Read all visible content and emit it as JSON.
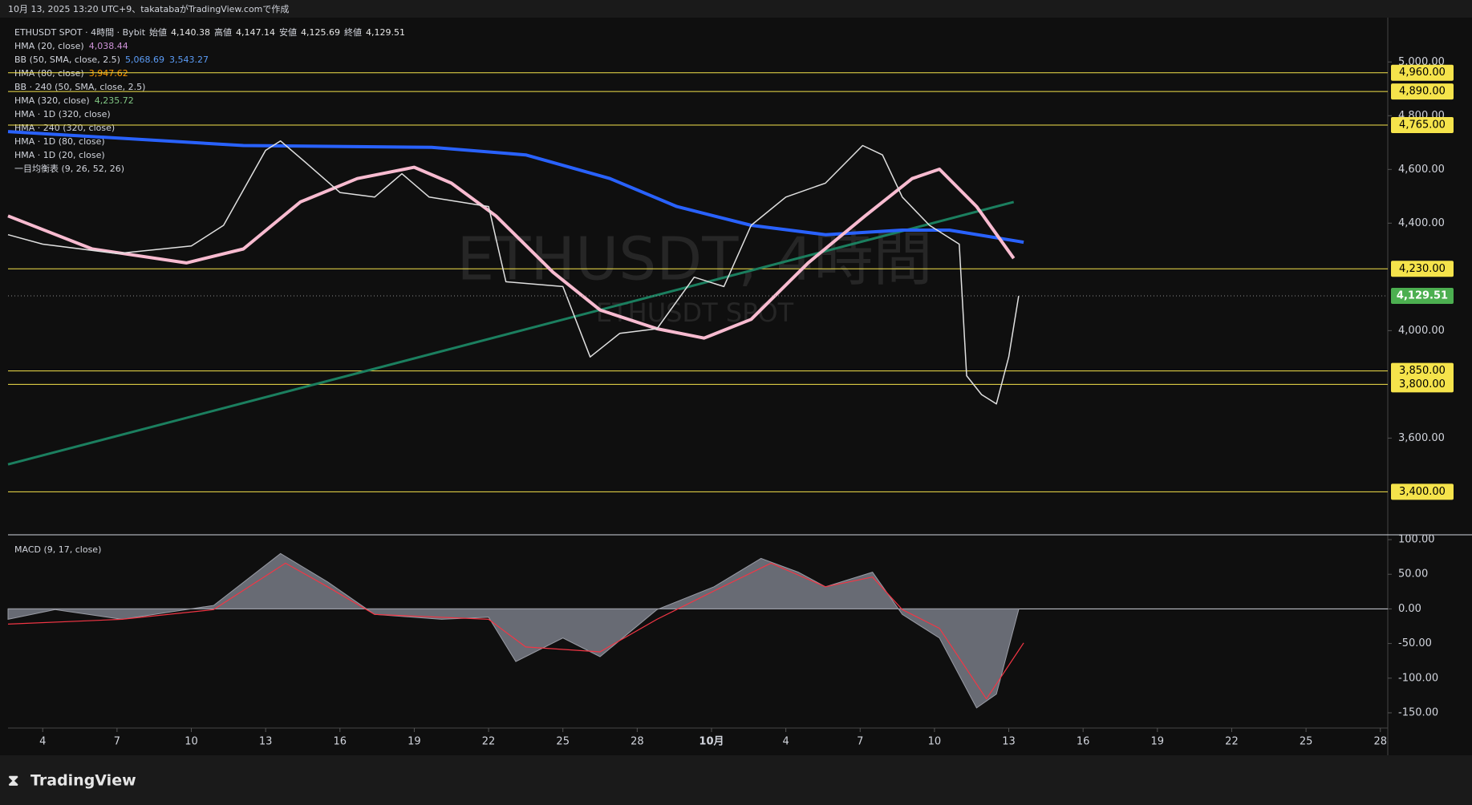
{
  "header": {
    "caption": "10月 13, 2025 13:20 UTC+9、takatabaがTradingView.comで作成"
  },
  "footer": {
    "brand": "TradingView"
  },
  "chart_data": [
    {
      "type": "line",
      "title": "ETHUSDT SPOT · 4時間 · Bybit",
      "ohlc": [
        {
          "name": "始値",
          "value": {
            "value": 4140.38,
            "label": "4,140.38"
          }
        },
        {
          "name": "高値",
          "value": {
            "value": 4147.14,
            "label": "4,147.14"
          }
        },
        {
          "name": "安値",
          "value": {
            "value": 4125.69,
            "label": "4,125.69"
          }
        },
        {
          "name": "終値",
          "value": {
            "value": 4129.51,
            "label": "4,129.51"
          }
        }
      ],
      "watermark": [
        "ETHUSDT, 4時間",
        "ETHUSDT SPOT"
      ],
      "legend": [
        {
          "name": "HMA (20, close)",
          "color": "#ce93d8",
          "values": [
            {
              "value": 4038.44,
              "label": "4,038.44"
            }
          ]
        },
        {
          "name": "BB (50, SMA, close, 2.5)",
          "color": "#5b9cf6",
          "values": [
            {
              "value": 5068.69,
              "label": "5,068.69"
            },
            {
              "value": 3543.27,
              "label": "3,543.27"
            }
          ]
        },
        {
          "name": "HMA (80, close)",
          "color": "#ff9800",
          "values": [
            {
              "value": 3947.62,
              "label": "3,947.62"
            }
          ]
        },
        {
          "name": "BB · 240 (50, SMA, close, 2.5)",
          "color": "#5b9cf6",
          "values": []
        },
        {
          "name": "HMA (320, close)",
          "color": "#81c784",
          "values": [
            {
              "value": 4235.72,
              "label": "4,235.72"
            }
          ]
        },
        {
          "name": "HMA · 1D (320, close)",
          "color": "#81c784",
          "values": []
        },
        {
          "name": "HMA · 240 (320, close)",
          "color": "#81c784",
          "values": []
        },
        {
          "name": "HMA · 1D (80, close)",
          "color": "#81c784",
          "values": []
        },
        {
          "name": "HMA · 1D (20, close)",
          "color": "#81c784",
          "values": []
        },
        {
          "name": "一目均衡表 (9, 26, 52, 26)",
          "color": "#81c784",
          "values": []
        }
      ],
      "xlim": [
        2.6,
        58.3
      ],
      "xticks": [
        4,
        7,
        10,
        13,
        16,
        19,
        22,
        25,
        28,
        {
          "value": 31,
          "label": "10月"
        },
        {
          "value": 34,
          "label": "4"
        },
        {
          "value": 37,
          "label": "7"
        },
        {
          "value": 40,
          "label": "10"
        },
        {
          "value": 43,
          "label": "13"
        },
        {
          "value": 46,
          "label": "16"
        },
        {
          "value": 49,
          "label": "19"
        },
        {
          "value": 52,
          "label": "22"
        },
        {
          "value": 55,
          "label": "25"
        },
        {
          "value": 58,
          "label": "28"
        }
      ],
      "ylim": [
        3240,
        5165
      ],
      "yticks": [
        {
          "value": 5000,
          "label": "5,000.00"
        },
        {
          "value": 4800,
          "label": "4,800.00"
        },
        {
          "value": 4600,
          "label": "4,600.00"
        },
        {
          "value": 4400,
          "label": "4,400.00"
        },
        {
          "value": 4000,
          "label": "4,000.00"
        },
        {
          "value": 3600,
          "label": "3,600.00"
        }
      ],
      "levels": {
        "color": "#f5e34b",
        "values": [
          {
            "value": 4960,
            "label": "4,960.00"
          },
          {
            "value": 4890,
            "label": "4,890.00"
          },
          {
            "value": 4765,
            "label": "4,765.00"
          },
          {
            "value": 4230,
            "label": "4,230.00"
          },
          {
            "value": 3850,
            "label": "3,850.00"
          },
          {
            "value": 3800,
            "label": "3,800.00"
          },
          {
            "value": 3400,
            "label": "3,400.00"
          }
        ]
      },
      "last_price": {
        "value": 4129.51,
        "label": "4,129.51",
        "color": "#4caf50"
      },
      "series": [
        {
          "color": "#1b7f5f",
          "width": 3,
          "x": [
            2.6,
            43.2
          ],
          "values": [
            3502,
            4479
          ]
        },
        {
          "color": "#2962ff",
          "width": 4,
          "x": [
            2.6,
            12.1,
            19.7,
            23.5,
            26.9,
            29.6,
            32.6,
            35.6,
            38.7,
            40.6,
            43.6
          ],
          "values": [
            4741,
            4689,
            4682,
            4654,
            4566,
            4462,
            4392,
            4357,
            4374,
            4374,
            4329
          ]
        },
        {
          "color": "#f8bbd0",
          "width": 4,
          "x": [
            2.6,
            6.0,
            9.8,
            12.1,
            14.4,
            16.7,
            19.0,
            20.5,
            22.3,
            24.6,
            26.5,
            28.8,
            30.7,
            32.6,
            34.9,
            37.2,
            39.1,
            40.2,
            41.7,
            43.2
          ],
          "values": [
            4427,
            4304,
            4252,
            4304,
            4479,
            4566,
            4608,
            4549,
            4427,
            4217,
            4077,
            4007,
            3972,
            4042,
            4252,
            4427,
            4566,
            4601,
            4462,
            4269
          ]
        },
        {
          "color": "#e0e0e0",
          "width": 1.5,
          "x": [
            2.6,
            4.0,
            7.0,
            10.0,
            11.3,
            13.0,
            13.6,
            14.7,
            16.0,
            17.4,
            18.5,
            19.6,
            22.0,
            22.7,
            25.0,
            26.1,
            27.3,
            28.8,
            30.3,
            31.5,
            32.6,
            34.0,
            35.6,
            37.1,
            37.9,
            38.7,
            39.8,
            41.0,
            41.3,
            41.9,
            42.5,
            43.0,
            43.4
          ],
          "values": [
            4357,
            4322,
            4287,
            4315,
            4392,
            4671,
            4706,
            4619,
            4514,
            4497,
            4584,
            4497,
            4462,
            4182,
            4164,
            3902,
            3990,
            4007,
            4199,
            4164,
            4392,
            4497,
            4549,
            4689,
            4654,
            4497,
            4392,
            4322,
            3832,
            3762,
            3727,
            3902,
            4129.51
          ]
        }
      ]
    },
    {
      "type": "line",
      "title": "MACD (9, 17, close)",
      "xlim": [
        2.6,
        58.3
      ],
      "ylim": [
        -172,
        107
      ],
      "yticks": [
        {
          "value": 100,
          "label": "100.00"
        },
        {
          "value": 50,
          "label": "50.00"
        },
        {
          "value": 0,
          "label": "0.00"
        },
        {
          "value": -50,
          "label": "-50.00"
        },
        {
          "value": -100,
          "label": "-100.00"
        },
        {
          "value": -150,
          "label": "-150.00"
        }
      ],
      "series": [
        {
          "style": "area",
          "color": "#787b86",
          "x": [
            2.6,
            4.5,
            7.2,
            10.9,
            13.6,
            15.5,
            17.4,
            20.1,
            22.0,
            23.1,
            25.0,
            26.5,
            28.8,
            31.1,
            33.0,
            34.5,
            35.6,
            37.5,
            38.7,
            40.2,
            41.7,
            42.5,
            43.4
          ],
          "values": [
            -15,
            -1,
            -15,
            5,
            80,
            39,
            -8,
            -15,
            -12,
            -76,
            -42,
            -69,
            -1,
            32,
            73,
            53,
            32,
            53,
            -8,
            -42,
            -143,
            -123,
            -1
          ]
        },
        {
          "style": "line",
          "color": "#f23645",
          "x": [
            2.6,
            7.2,
            10.9,
            13.8,
            15.5,
            17.4,
            22.0,
            23.5,
            26.5,
            28.8,
            31.1,
            33.4,
            35.6,
            37.5,
            38.7,
            40.2,
            42.1,
            43.6
          ],
          "values": [
            -22,
            -15,
            -1,
            66,
            32,
            -8,
            -15,
            -55,
            -62,
            -15,
            26,
            66,
            32,
            46,
            -1,
            -28,
            -130,
            -49
          ]
        }
      ]
    }
  ]
}
